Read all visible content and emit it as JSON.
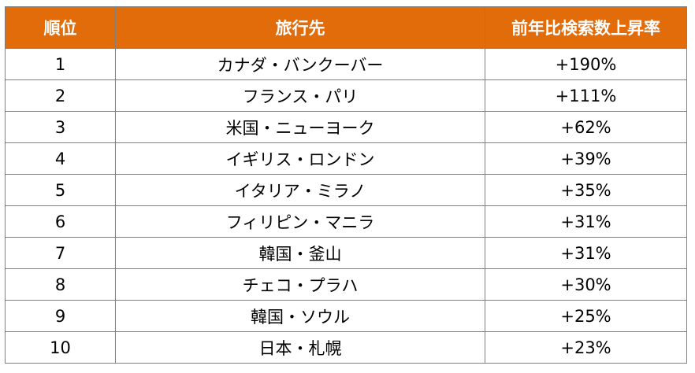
{
  "table": {
    "header_color": "#e26b0a",
    "columns": [
      "順位",
      "旅行先",
      "前年比検索数上昇率"
    ],
    "rows": [
      {
        "rank": "1",
        "destination": "カナダ・バンクーバー",
        "increase": "+190%"
      },
      {
        "rank": "2",
        "destination": "フランス・パリ",
        "increase": "+111%"
      },
      {
        "rank": "3",
        "destination": "米国・ニューヨーク",
        "increase": "+62%"
      },
      {
        "rank": "4",
        "destination": "イギリス・ロンドン",
        "increase": "+39%"
      },
      {
        "rank": "5",
        "destination": "イタリア・ミラノ",
        "increase": "+35%"
      },
      {
        "rank": "6",
        "destination": "フィリピン・マニラ",
        "increase": "+31%"
      },
      {
        "rank": "7",
        "destination": "韓国・釜山",
        "increase": "+31%"
      },
      {
        "rank": "8",
        "destination": "チェコ・プラハ",
        "increase": "+30%"
      },
      {
        "rank": "9",
        "destination": "韓国・ソウル",
        "increase": "+25%"
      },
      {
        "rank": "10",
        "destination": "日本・札幌",
        "increase": "+23%"
      }
    ]
  }
}
